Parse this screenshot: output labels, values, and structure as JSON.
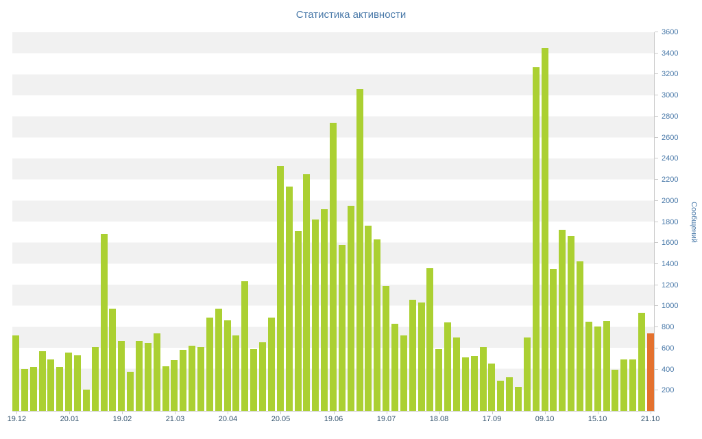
{
  "chart_data": {
    "type": "bar",
    "title": "Статистика активности",
    "ylabel": "Сообщений",
    "ylim": [
      0,
      3600
    ],
    "y_tick_step": 200,
    "y_ticks": [
      200,
      400,
      600,
      800,
      1000,
      1200,
      1400,
      1600,
      1800,
      2000,
      2200,
      2400,
      2600,
      2800,
      3000,
      3200,
      3400,
      3600
    ],
    "grid": "striped-horizontal-bands",
    "legend": "none",
    "x_tick_labels": [
      {
        "label": "19.12",
        "bar_index": 0
      },
      {
        "label": "20.01",
        "bar_index": 6
      },
      {
        "label": "19.02",
        "bar_index": 12
      },
      {
        "label": "21.03",
        "bar_index": 18
      },
      {
        "label": "20.04",
        "bar_index": 24
      },
      {
        "label": "20.05",
        "bar_index": 30
      },
      {
        "label": "19.06",
        "bar_index": 36
      },
      {
        "label": "19.07",
        "bar_index": 42
      },
      {
        "label": "18.08",
        "bar_index": 48
      },
      {
        "label": "17.09",
        "bar_index": 54
      },
      {
        "label": "09.10",
        "bar_index": 60
      },
      {
        "label": "15.10",
        "bar_index": 66
      },
      {
        "label": "21.10",
        "bar_index": 72
      }
    ],
    "values": [
      720,
      400,
      420,
      570,
      490,
      420,
      555,
      530,
      200,
      605,
      1680,
      975,
      665,
      370,
      665,
      645,
      740,
      425,
      480,
      580,
      620,
      605,
      890,
      975,
      860,
      720,
      1230,
      590,
      650,
      890,
      2330,
      2130,
      1710,
      2250,
      1820,
      1920,
      2740,
      1580,
      1950,
      3060,
      1760,
      1630,
      1190,
      830,
      715,
      1060,
      1030,
      1355,
      590,
      840,
      695,
      510,
      520,
      610,
      450,
      285,
      320,
      230,
      700,
      3270,
      3450,
      1350,
      1720,
      1660,
      1420,
      845,
      800,
      855,
      390,
      490,
      490,
      930,
      735
    ],
    "highlight_index": 72,
    "colors": {
      "bar": "#abd032",
      "bar_highlight": "#e4712e",
      "title": "#4878a8",
      "tick_label": "#4878a8",
      "x_label": "#33536e",
      "stripe": "#f1f1f1",
      "stripe_alt": "#ffffff",
      "axis_line": "#c9c9c9",
      "background": "#ffffff"
    }
  }
}
